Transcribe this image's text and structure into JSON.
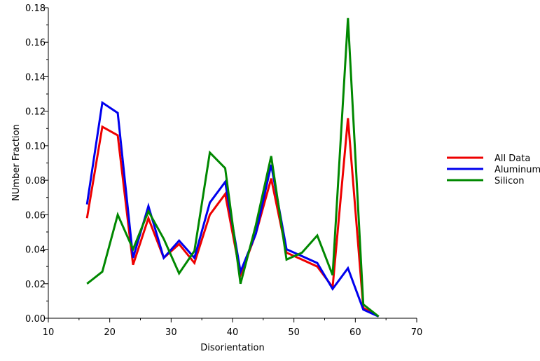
{
  "chart_data": {
    "type": "line",
    "xlabel": "Disorientation",
    "ylabel": "NUmber Fraction",
    "xlim": [
      10,
      70
    ],
    "ylim": [
      0,
      0.18
    ],
    "x_ticks": [
      10,
      20,
      30,
      40,
      50,
      60,
      70
    ],
    "y_ticks": [
      0.0,
      0.02,
      0.04,
      0.06,
      0.08,
      0.1,
      0.12,
      0.14,
      0.16,
      0.18
    ],
    "y_tick_labels": [
      "0.00",
      "0.02",
      "0.04",
      "0.06",
      "0.08",
      "0.10",
      "0.12",
      "0.14",
      "0.16",
      "0.18"
    ],
    "grid": false,
    "legend_position": "right",
    "x": [
      16.3,
      18.8,
      21.3,
      23.8,
      26.3,
      28.8,
      31.3,
      33.8,
      36.3,
      38.8,
      41.3,
      43.8,
      46.3,
      48.8,
      51.3,
      53.8,
      56.3,
      58.8,
      61.3,
      63.8
    ],
    "series": [
      {
        "name": "All Data",
        "color": "#ee0000",
        "values": [
          0.058,
          0.111,
          0.106,
          0.031,
          0.058,
          0.035,
          0.043,
          0.032,
          0.06,
          0.072,
          0.025,
          0.049,
          0.081,
          0.038,
          0.034,
          0.03,
          0.018,
          0.116,
          0.006,
          0.001
        ]
      },
      {
        "name": "Aluminum",
        "color": "#0000ee",
        "values": [
          0.066,
          0.125,
          0.119,
          0.035,
          0.065,
          0.035,
          0.045,
          0.035,
          0.067,
          0.079,
          0.027,
          0.049,
          0.089,
          0.04,
          0.036,
          0.032,
          0.017,
          0.029,
          0.005,
          0.001
        ]
      },
      {
        "name": "Silicon",
        "color": "#008800",
        "values": [
          0.02,
          0.027,
          0.06,
          0.04,
          0.062,
          0.046,
          0.026,
          0.039,
          0.096,
          0.087,
          0.02,
          0.054,
          0.094,
          0.034,
          0.038,
          0.048,
          0.025,
          0.174,
          0.008,
          0.001
        ]
      }
    ]
  }
}
